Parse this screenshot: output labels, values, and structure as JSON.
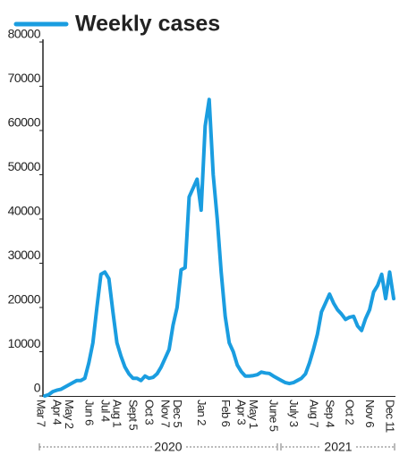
{
  "chart_data": {
    "type": "line",
    "categories": [
      "Mar 7",
      null,
      null,
      null,
      "Apr 4",
      null,
      null,
      "May 2",
      null,
      null,
      null,
      null,
      "Jun 6",
      null,
      null,
      null,
      "Jul 4",
      null,
      null,
      "Aug 1",
      null,
      null,
      null,
      "Sept 5",
      null,
      null,
      null,
      "Oct 3",
      null,
      null,
      null,
      "Nov 7",
      null,
      null,
      "Dec 5",
      null,
      null,
      null,
      null,
      null,
      "Jan 2",
      null,
      null,
      null,
      null,
      null,
      "Feb 6",
      null,
      null,
      null,
      "Apr 3",
      null,
      null,
      "May 1",
      null,
      null,
      null,
      null,
      "June 5",
      null,
      null,
      null,
      null,
      "July 3",
      null,
      null,
      null,
      null,
      "Aug 7",
      null,
      null,
      null,
      "Sep 4",
      null,
      null,
      null,
      null,
      "Oct 2",
      null,
      null,
      null,
      null,
      "Nov 6",
      null,
      null,
      null,
      null,
      "Dec 11"
    ],
    "series": [
      {
        "name": "Weekly cases",
        "color": "#1a9de0",
        "values": [
          0,
          300,
          1000,
          1300,
          1500,
          2000,
          2500,
          3000,
          3500,
          3500,
          4000,
          7500,
          12000,
          20000,
          27500,
          28000,
          26500,
          19000,
          12000,
          9000,
          6500,
          5000,
          4000,
          4000,
          3500,
          4500,
          4000,
          4200,
          5000,
          6500,
          8500,
          10500,
          16000,
          20000,
          28500,
          29000,
          45000,
          47000,
          49000,
          42000,
          61000,
          67000,
          50000,
          40000,
          28000,
          18000,
          12000,
          10000,
          7000,
          5500,
          4500,
          4500,
          4600,
          4800,
          5400,
          5200,
          5100,
          4500,
          4000,
          3500,
          3000,
          2800,
          3000,
          3500,
          4000,
          5000,
          7500,
          10500,
          14000,
          19000,
          21000,
          23000,
          21000,
          19500,
          18500,
          17300,
          17800,
          18000,
          15800,
          14800,
          17500,
          19500,
          23500,
          25000,
          27500,
          22000,
          28000,
          22000
        ]
      }
    ],
    "year_labels": [
      "2020",
      "2021"
    ],
    "ylim": [
      0,
      80000
    ],
    "yticks": [
      0,
      10000,
      20000,
      30000,
      40000,
      50000,
      60000,
      70000,
      80000
    ],
    "grid": false,
    "legend": "top"
  }
}
